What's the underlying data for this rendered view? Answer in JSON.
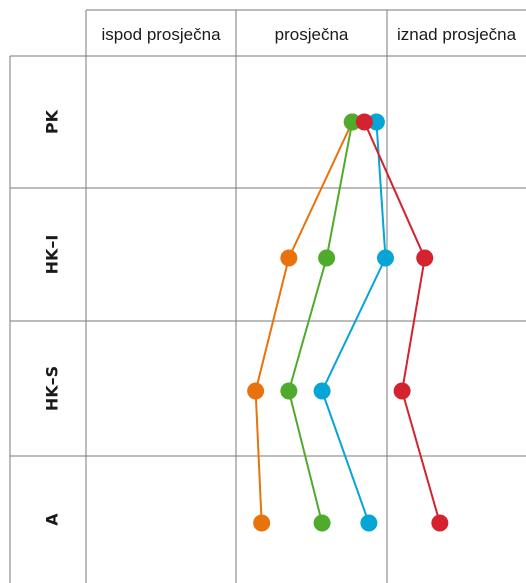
{
  "chart_data": {
    "type": "line",
    "columns": [
      "ispod prosječna",
      "prosječna",
      "iznad prosječna"
    ],
    "rows": [
      "PK",
      "HK–I",
      "HK–S",
      "A"
    ],
    "x_scale": {
      "note": "0 = left edge of 'ispod prosječna', 1 = boundary ispod/prosječna, 2 = boundary prosječna/iznad, 3 = right edge"
    },
    "xlim": [
      0,
      3
    ],
    "series": [
      {
        "color": "#e8730c",
        "values": [
          1.77,
          1.35,
          1.13,
          1.17
        ]
      },
      {
        "color": "#4fab2c",
        "values": [
          1.77,
          1.6,
          1.35,
          1.57
        ]
      },
      {
        "color": "#05a6d6",
        "values": [
          1.93,
          1.99,
          1.57,
          1.88
        ]
      },
      {
        "color": "#d4222f",
        "values": [
          1.85,
          2.25,
          2.1,
          2.35
        ]
      }
    ]
  }
}
